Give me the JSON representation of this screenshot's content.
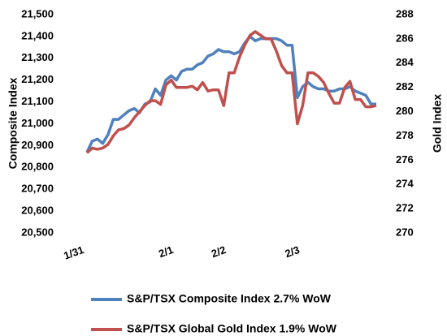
{
  "chart_data": {
    "type": "line",
    "categories": [
      "1/31",
      null,
      null,
      null,
      null,
      null,
      null,
      null,
      null,
      null,
      null,
      null,
      null,
      null,
      null,
      null,
      null,
      "2/1",
      null,
      null,
      null,
      null,
      null,
      null,
      null,
      null,
      null,
      "2/2",
      null,
      null,
      null,
      null,
      null,
      null,
      null,
      null,
      null,
      null,
      null,
      null,
      null,
      "2/3",
      null,
      null,
      null,
      null,
      null,
      null,
      null,
      null,
      null,
      null,
      null,
      null,
      null,
      null
    ],
    "series": [
      {
        "name": "S&P/TSX Composite Index 2.7% WoW",
        "color": "#4f81bd",
        "values": [
          20870,
          20920,
          20930,
          20910,
          20950,
          21020,
          21020,
          21040,
          21060,
          21070,
          21050,
          21090,
          21100,
          21160,
          21130,
          21200,
          21220,
          21200,
          21240,
          21250,
          21250,
          21270,
          21280,
          21310,
          21320,
          21340,
          21330,
          21330,
          21320,
          21330,
          21370,
          21400,
          21380,
          21390,
          21390,
          21390,
          21390,
          21380,
          21360,
          21360,
          21120,
          21170,
          21190,
          21170,
          21160,
          21160,
          21150,
          21150,
          21160,
          21160,
          21170,
          21150,
          21140,
          21130,
          21090,
          21090
        ]
      },
      {
        "name": "S&P/TSX Global Gold Index 1.9% WoW",
        "color": "#c0504d",
        "axis": "y2",
        "values": [
          276.6,
          277.0,
          276.9,
          277.0,
          277.3,
          278.0,
          278.5,
          278.6,
          278.9,
          279.5,
          280.0,
          280.5,
          280.9,
          280.9,
          280.6,
          282.2,
          282.6,
          282.0,
          282.0,
          282.0,
          282.1,
          281.8,
          282.4,
          281.7,
          281.8,
          281.8,
          280.5,
          283.2,
          283.2,
          284.5,
          285.5,
          286.3,
          286.6,
          286.3,
          286.0,
          286.0,
          285.0,
          283.8,
          283.2,
          283.2,
          279.0,
          280.5,
          283.2,
          283.2,
          282.9,
          282.4,
          281.5,
          280.7,
          280.7,
          282.0,
          282.5,
          281.0,
          281.0,
          280.4,
          280.4,
          280.5
        ]
      }
    ],
    "ylabel": "Composite Index",
    "y2label": "Gold Index",
    "ylim": [
      20500,
      21500
    ],
    "yticks": [
      {
        "value": 20500,
        "label": "20,500"
      },
      {
        "value": 20600,
        "label": "20,600"
      },
      {
        "value": 20700,
        "label": "20,700"
      },
      {
        "value": 20800,
        "label": "20,800"
      },
      {
        "value": 20900,
        "label": "20,900"
      },
      {
        "value": 21000,
        "label": "21,000"
      },
      {
        "value": 21100,
        "label": "21,100"
      },
      {
        "value": 21200,
        "label": "21,200"
      },
      {
        "value": 21300,
        "label": "21,300"
      },
      {
        "value": 21400,
        "label": "21,400"
      },
      {
        "value": 21500,
        "label": "21,500"
      }
    ],
    "y2lim": [
      270,
      288
    ],
    "y2ticks": [
      270,
      272,
      274,
      276,
      278,
      280,
      282,
      284,
      286,
      288
    ],
    "legend": "bottom"
  }
}
